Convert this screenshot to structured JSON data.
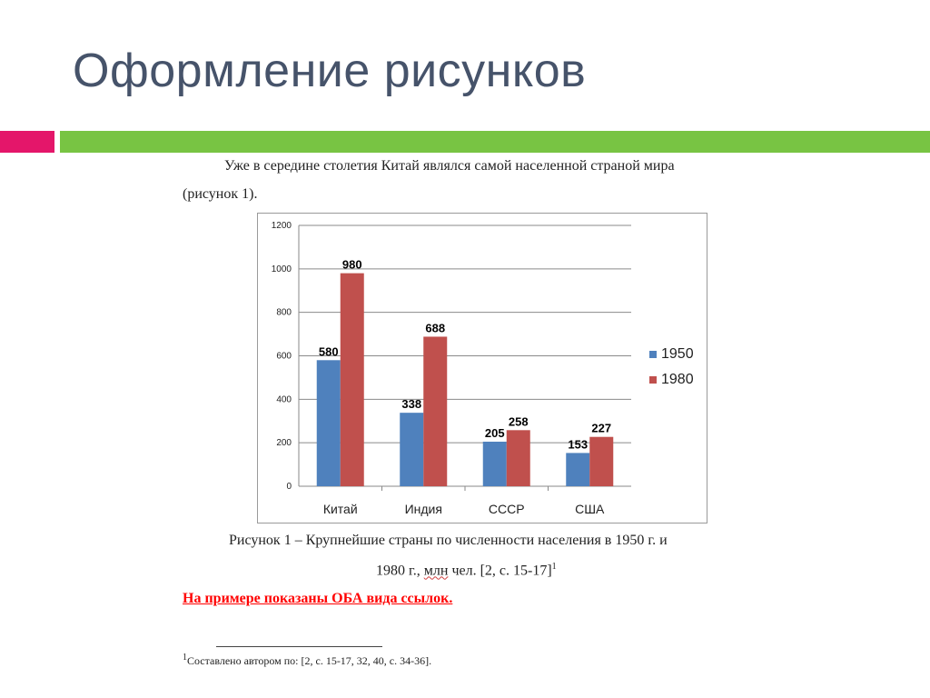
{
  "slide": {
    "title": "Оформление рисунков",
    "accent_colors": {
      "pink": "#e4166a",
      "green": "#78c443"
    }
  },
  "document": {
    "intro_line1": "Уже в середине столетия Китай являлся самой населенной страной мира",
    "intro_line2": "(рисунок 1).",
    "caption_line1": "Рисунок 1 – Крупнейшие страны по численности населения в 1950 г. и",
    "caption_line2_a": "1980 г., ",
    "caption_line2_b": "млн",
    "caption_line2_c": " чел. [2, с. 15-17]",
    "caption_sup": "1",
    "red_note": "На примере показаны ОБА вида ссылок.",
    "footnote_sup": "1",
    "footnote_text": "Составлено автором по: [2, с. 15-17, 32, 40, с. 34-36]."
  },
  "chart_data": {
    "type": "bar",
    "categories": [
      "Китай",
      "Индия",
      "СССР",
      "США"
    ],
    "series": [
      {
        "name": "1950",
        "values": [
          580,
          338,
          205,
          153
        ],
        "color": "#4f81bd"
      },
      {
        "name": "1980",
        "values": [
          980,
          688,
          258,
          227
        ],
        "color": "#c0504d"
      }
    ],
    "ylim": [
      0,
      1200
    ],
    "yticks": [
      0,
      200,
      400,
      600,
      800,
      1000,
      1200
    ],
    "grid": true,
    "legend_position": "right",
    "data_labels": true
  }
}
